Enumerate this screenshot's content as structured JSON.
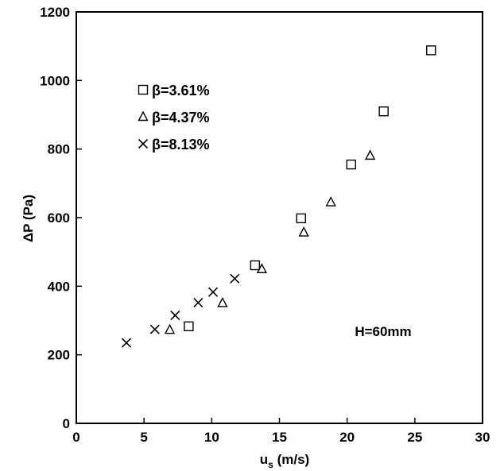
{
  "chart_data": {
    "type": "scatter",
    "xlabel": "u",
    "xlabel_sub": "s",
    "xlabel_unit": " (m/s)",
    "ylabel": "ΔP (Pa)",
    "xlim": [
      0,
      30
    ],
    "ylim": [
      0,
      1200
    ],
    "xticks": [
      0,
      5,
      10,
      15,
      20,
      25,
      30
    ],
    "yticks": [
      0,
      200,
      400,
      600,
      800,
      1000,
      1200
    ],
    "grid": false,
    "legend_position": "top-left",
    "annotation": "H=60mm",
    "series": [
      {
        "name": "β=3.61%",
        "marker": "square",
        "points": [
          [
            8.3,
            283
          ],
          [
            13.2,
            461
          ],
          [
            16.6,
            598
          ],
          [
            20.3,
            755
          ],
          [
            22.7,
            910
          ],
          [
            26.2,
            1088
          ]
        ]
      },
      {
        "name": "β=4.37%",
        "marker": "triangle",
        "points": [
          [
            6.9,
            273
          ],
          [
            10.8,
            351
          ],
          [
            13.7,
            450
          ],
          [
            16.8,
            557
          ],
          [
            18.8,
            645
          ],
          [
            21.7,
            781
          ]
        ]
      },
      {
        "name": "β=8.13%",
        "marker": "cross",
        "points": [
          [
            3.7,
            235
          ],
          [
            5.8,
            274
          ],
          [
            7.3,
            315
          ],
          [
            9.0,
            352
          ],
          [
            10.1,
            383
          ],
          [
            11.7,
            422
          ]
        ]
      }
    ]
  }
}
